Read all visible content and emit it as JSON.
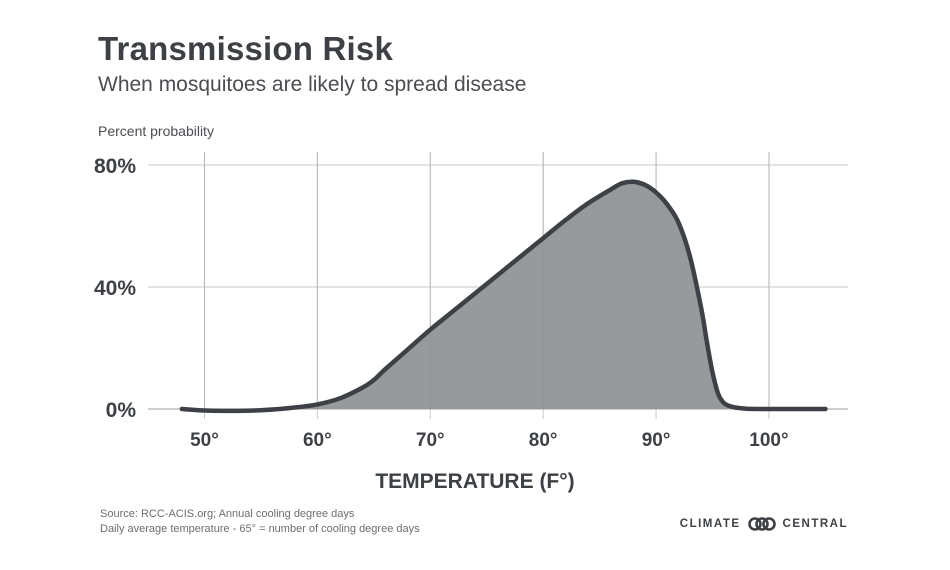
{
  "header": {
    "title": "Transmission Risk",
    "subtitle": "When mosquitoes are likely to spread disease"
  },
  "footer": {
    "source_line1": "Source: RCC-ACIS.org; Annual cooling degree days",
    "source_line2": "Daily average temperature - 65° = number of cooling degree days",
    "logo_left": "CLIMATE",
    "logo_right": "CENTRAL"
  },
  "colors": {
    "fill": "#97999b",
    "line": "#3d4045",
    "grid": "#c8c9cb"
  },
  "chart_data": {
    "type": "area",
    "ytitle": "Percent probability",
    "xlabel": "TEMPERATURE (F°)",
    "xlim": [
      45,
      107
    ],
    "ylim": [
      0,
      80
    ],
    "x_ticks": [
      50,
      60,
      70,
      80,
      90,
      100
    ],
    "x_tick_labels": [
      "50°",
      "60°",
      "70°",
      "80°",
      "90°",
      "100°"
    ],
    "y_ticks": [
      0,
      40,
      80
    ],
    "y_tick_labels": [
      "0%",
      "40%",
      "80%"
    ],
    "grid": true,
    "series": [
      {
        "x": [
          48,
          50,
          52,
          55,
          58,
          60,
          62,
          64,
          65,
          66,
          68,
          70,
          72,
          75,
          78,
          80,
          82,
          84,
          86,
          87,
          88,
          89,
          90,
          91,
          92,
          93,
          94,
          94.5,
          95,
          95.5,
          96,
          96.5,
          97,
          98,
          100,
          103,
          105
        ],
        "y": [
          0,
          -0.5,
          -0.6,
          -0.4,
          0.5,
          1.5,
          3.5,
          7,
          9.5,
          13,
          19.5,
          26,
          32,
          41,
          50,
          56,
          62,
          67.5,
          72,
          74,
          74.5,
          73.5,
          71,
          67,
          61,
          50,
          33,
          22,
          12,
          5,
          2,
          1,
          0.5,
          0.1,
          0,
          0,
          0
        ]
      }
    ]
  }
}
